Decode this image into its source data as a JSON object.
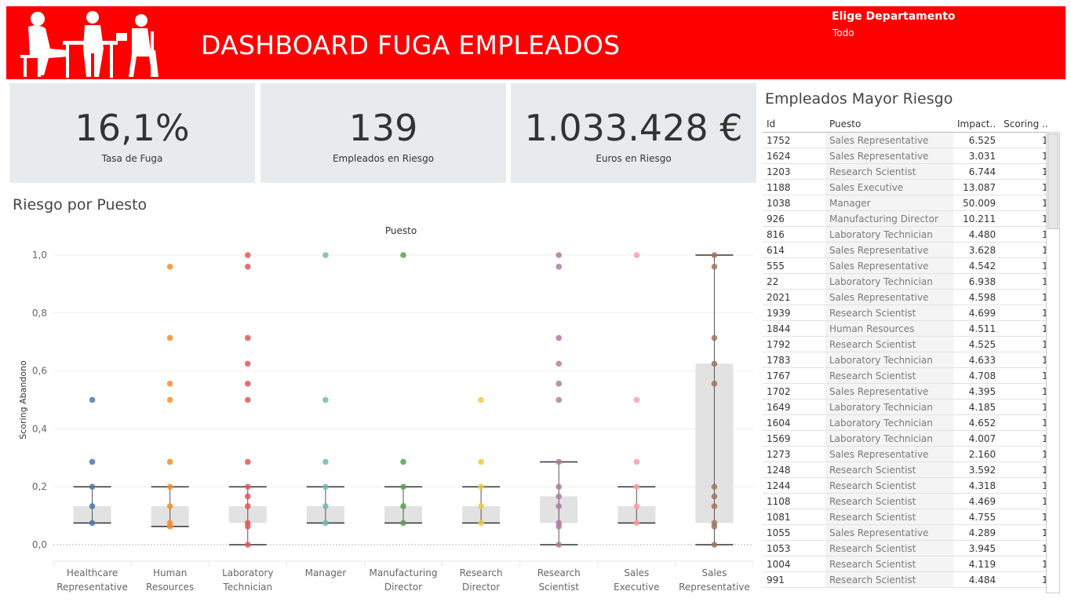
{
  "header": {
    "title": "DASHBOARD FUGA EMPLEADOS",
    "filter_label": "Elige Departamento",
    "filter_value": "Todo",
    "logo_icon": "office-people-silhouette-icon",
    "background_color": "#ff0000"
  },
  "kpis": [
    {
      "value": "16,1%",
      "label": "Tasa de Fuga"
    },
    {
      "value": "139",
      "label": "Empleados en Riesgo"
    },
    {
      "value": "1.033.428 €",
      "label": "Euros en Riesgo"
    }
  ],
  "chart_title": "Riesgo por Puesto",
  "chart_data": {
    "type": "scatter",
    "column_title": "Puesto",
    "ylabel": "Scoring Abandono",
    "ylim": [
      0,
      1
    ],
    "yticks": [
      "0,0",
      "0,2",
      "0,4",
      "0,6",
      "0,8",
      "1,0"
    ],
    "categories": [
      "Healthcare Representative",
      "Human Resources",
      "Laboratory Technician",
      "Manager",
      "Manufacturing Director",
      "Research Director",
      "Research Scientist",
      "Sales Executive",
      "Sales Representative"
    ],
    "colors": [
      "#4e79a7",
      "#f28e2b",
      "#e15759",
      "#76b7b2",
      "#59a14f",
      "#edc948",
      "#b07aa1",
      "#ff9da7",
      "#9c755f"
    ],
    "points": [
      [
        0.5,
        0.286,
        0.2,
        0.133,
        0.075
      ],
      [
        0.96,
        0.714,
        0.556,
        0.5,
        0.286,
        0.2,
        0.133,
        0.075,
        0.063
      ],
      [
        1.0,
        0.96,
        0.714,
        0.625,
        0.556,
        0.5,
        0.286,
        0.2,
        0.167,
        0.133,
        0.075,
        0.063,
        0.0
      ],
      [
        1.0,
        0.5,
        0.286,
        0.2,
        0.133,
        0.075
      ],
      [
        1.0,
        0.286,
        0.2,
        0.133,
        0.075
      ],
      [
        0.5,
        0.286,
        0.2,
        0.133,
        0.075
      ],
      [
        1.0,
        0.96,
        0.714,
        0.625,
        0.556,
        0.5,
        0.286,
        0.2,
        0.167,
        0.133,
        0.075,
        0.063,
        0.0
      ],
      [
        1.0,
        0.5,
        0.286,
        0.2,
        0.133,
        0.075
      ],
      [
        1.0,
        0.96,
        0.714,
        0.625,
        0.556,
        0.2,
        0.167,
        0.133,
        0.075,
        0.063,
        0.0
      ]
    ],
    "boxes": [
      {
        "lw": 0.075,
        "q1": 0.075,
        "med": 0.133,
        "q3": 0.133,
        "uw": 0.2
      },
      {
        "lw": 0.063,
        "q1": 0.063,
        "med": 0.133,
        "q3": 0.133,
        "uw": 0.2
      },
      {
        "lw": 0.0,
        "q1": 0.075,
        "med": 0.133,
        "q3": 0.133,
        "uw": 0.2
      },
      {
        "lw": 0.075,
        "q1": 0.075,
        "med": 0.133,
        "q3": 0.133,
        "uw": 0.2
      },
      {
        "lw": 0.075,
        "q1": 0.075,
        "med": 0.133,
        "q3": 0.133,
        "uw": 0.2
      },
      {
        "lw": 0.075,
        "q1": 0.075,
        "med": 0.133,
        "q3": 0.133,
        "uw": 0.2
      },
      {
        "lw": 0.0,
        "q1": 0.075,
        "med": 0.167,
        "q3": 0.167,
        "uw": 0.286
      },
      {
        "lw": 0.075,
        "q1": 0.075,
        "med": 0.133,
        "q3": 0.133,
        "uw": 0.2
      },
      {
        "lw": 0.0,
        "q1": 0.075,
        "med": 0.625,
        "q3": 0.625,
        "uw": 1.0
      }
    ]
  },
  "table": {
    "title": "Empleados Mayor Riesgo",
    "columns": [
      "Id",
      "Puesto",
      "Impact..",
      "Scoring .."
    ],
    "rows": [
      [
        "1752",
        "Sales Representative",
        "6.525",
        "1"
      ],
      [
        "1624",
        "Sales Representative",
        "3.031",
        "1"
      ],
      [
        "1203",
        "Research Scientist",
        "6.744",
        "1"
      ],
      [
        "1188",
        "Sales Executive",
        "13.087",
        "1"
      ],
      [
        "1038",
        "Manager",
        "50.009",
        "1"
      ],
      [
        "926",
        "Manufacturing Director",
        "10.211",
        "1"
      ],
      [
        "816",
        "Laboratory Technician",
        "4.480",
        "1"
      ],
      [
        "614",
        "Sales Representative",
        "3.628",
        "1"
      ],
      [
        "555",
        "Sales Representative",
        "4.542",
        "1"
      ],
      [
        "22",
        "Laboratory Technician",
        "6.938",
        "1"
      ],
      [
        "2021",
        "Sales Representative",
        "4.598",
        "1"
      ],
      [
        "1939",
        "Research Scientist",
        "4.699",
        "1"
      ],
      [
        "1844",
        "Human Resources",
        "4.511",
        "1"
      ],
      [
        "1792",
        "Research Scientist",
        "4.525",
        "1"
      ],
      [
        "1783",
        "Laboratory Technician",
        "4.633",
        "1"
      ],
      [
        "1767",
        "Research Scientist",
        "4.708",
        "1"
      ],
      [
        "1702",
        "Sales Representative",
        "4.395",
        "1"
      ],
      [
        "1649",
        "Laboratory Technician",
        "4.185",
        "1"
      ],
      [
        "1604",
        "Laboratory Technician",
        "4.652",
        "1"
      ],
      [
        "1569",
        "Laboratory Technician",
        "4.007",
        "1"
      ],
      [
        "1273",
        "Sales Representative",
        "2.160",
        "1"
      ],
      [
        "1248",
        "Research Scientist",
        "3.592",
        "1"
      ],
      [
        "1244",
        "Research Scientist",
        "4.318",
        "1"
      ],
      [
        "1108",
        "Research Scientist",
        "4.469",
        "1"
      ],
      [
        "1081",
        "Research Scientist",
        "4.755",
        "1"
      ],
      [
        "1055",
        "Sales Representative",
        "4.289",
        "1"
      ],
      [
        "1053",
        "Research Scientist",
        "3.945",
        "1"
      ],
      [
        "1004",
        "Research Scientist",
        "4.119",
        "1"
      ],
      [
        "991",
        "Research Scientist",
        "4.484",
        "1"
      ]
    ]
  }
}
